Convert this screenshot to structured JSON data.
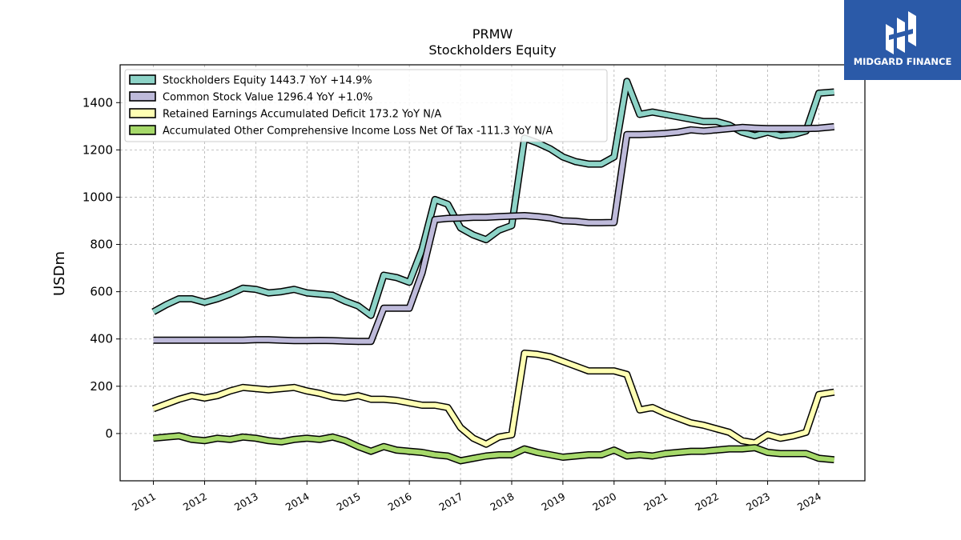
{
  "brand": {
    "name": "MIDGARD FINANCE",
    "bg_color": "#2b5aa8"
  },
  "chart_data": {
    "type": "line",
    "title": "PRMW",
    "subtitle": "Stockholders  Equity",
    "ylabel": "USDm",
    "xlabel": "",
    "ylim": [
      -200,
      1560
    ],
    "xlim": [
      2010.35,
      2024.9
    ],
    "yticks": [
      0,
      200,
      400,
      600,
      800,
      1000,
      1200,
      1400
    ],
    "xticks": [
      "2011",
      "2012",
      "2013",
      "2014",
      "2015",
      "2016",
      "2017",
      "2018",
      "2019",
      "2020",
      "2021",
      "2022",
      "2023",
      "2024"
    ],
    "grid": true,
    "legend_position": "top-left",
    "x": [
      2011.0,
      2011.25,
      2011.5,
      2011.75,
      2012.0,
      2012.25,
      2012.5,
      2012.75,
      2013.0,
      2013.25,
      2013.5,
      2013.75,
      2014.0,
      2014.25,
      2014.5,
      2014.75,
      2015.0,
      2015.25,
      2015.5,
      2015.75,
      2016.0,
      2016.25,
      2016.5,
      2016.75,
      2017.0,
      2017.25,
      2017.5,
      2017.75,
      2018.0,
      2018.25,
      2018.5,
      2018.75,
      2019.0,
      2019.25,
      2019.5,
      2019.75,
      2020.0,
      2020.25,
      2020.5,
      2020.75,
      2021.0,
      2021.25,
      2021.5,
      2021.75,
      2022.0,
      2022.25,
      2022.5,
      2022.75,
      2023.0,
      2023.25,
      2023.5,
      2023.75,
      2024.0,
      2024.3
    ],
    "series": [
      {
        "name": "Stockholders Equity  1443.7 YoY +14.9%",
        "color": "#8dd3c7",
        "values": [
          515,
          545,
          570,
          570,
          555,
          570,
          590,
          615,
          610,
          595,
          600,
          610,
          595,
          590,
          585,
          560,
          540,
          500,
          670,
          660,
          640,
          780,
          990,
          970,
          870,
          840,
          820,
          860,
          880,
          1250,
          1230,
          1205,
          1170,
          1150,
          1140,
          1140,
          1170,
          1490,
          1350,
          1360,
          1350,
          1340,
          1330,
          1320,
          1320,
          1305,
          1275,
          1260,
          1275,
          1260,
          1265,
          1280,
          1440,
          1445
        ]
      },
      {
        "name": "Common Stock Value  1296.4 YoY +1.0%",
        "color": "#bebada",
        "values": [
          395,
          395,
          395,
          395,
          395,
          395,
          395,
          395,
          397,
          397,
          395,
          393,
          393,
          394,
          393,
          391,
          390,
          390,
          530,
          530,
          530,
          680,
          905,
          910,
          912,
          915,
          915,
          918,
          920,
          922,
          918,
          912,
          900,
          898,
          892,
          892,
          893,
          1265,
          1265,
          1267,
          1270,
          1275,
          1285,
          1280,
          1285,
          1290,
          1295,
          1292,
          1290,
          1290,
          1290,
          1290,
          1292,
          1298
        ]
      },
      {
        "name": "Retained Earnings Accumulated Deficit  173.2 YoY N/A",
        "color": "#ffffb3",
        "values": [
          105,
          125,
          145,
          160,
          150,
          160,
          180,
          195,
          190,
          185,
          190,
          195,
          180,
          170,
          155,
          150,
          160,
          145,
          145,
          140,
          130,
          120,
          120,
          110,
          25,
          -20,
          -45,
          -15,
          -5,
          340,
          335,
          325,
          305,
          285,
          265,
          265,
          265,
          250,
          100,
          110,
          85,
          65,
          45,
          35,
          20,
          5,
          -30,
          -40,
          -5,
          -20,
          -10,
          5,
          165,
          175
        ]
      },
      {
        "name": "Accumulated Other Comprehensive Income Loss Net Of Tax  -111.3 YoY N/A",
        "color": "#a6d96a",
        "values": [
          -20,
          -15,
          -10,
          -25,
          -30,
          -20,
          -25,
          -15,
          -20,
          -30,
          -35,
          -25,
          -20,
          -25,
          -15,
          -30,
          -55,
          -75,
          -55,
          -70,
          -75,
          -80,
          -90,
          -95,
          -115,
          -105,
          -95,
          -90,
          -90,
          -65,
          -80,
          -90,
          -100,
          -95,
          -90,
          -90,
          -70,
          -95,
          -90,
          -95,
          -85,
          -80,
          -75,
          -75,
          -70,
          -65,
          -65,
          -60,
          -80,
          -85,
          -85,
          -85,
          -105,
          -111
        ]
      }
    ]
  }
}
